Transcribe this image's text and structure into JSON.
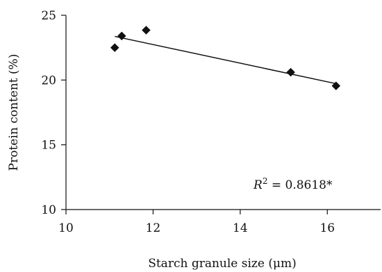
{
  "chart_data": {
    "type": "scatter",
    "xlabel": "Starch granule size (μm)",
    "ylabel": "Protein content (%)",
    "xlim": [
      10,
      17
    ],
    "ylim": [
      10,
      25
    ],
    "x_ticks": [
      10,
      12,
      14,
      16
    ],
    "y_ticks": [
      10,
      15,
      20,
      25
    ],
    "grid": false,
    "legend": "none",
    "series": [
      {
        "marker": "diamond",
        "color": "#111111",
        "points": [
          {
            "x": 11.12,
            "y": 22.5
          },
          {
            "x": 11.28,
            "y": 23.4
          },
          {
            "x": 11.84,
            "y": 23.85
          },
          {
            "x": 15.16,
            "y": 20.6
          },
          {
            "x": 16.2,
            "y": 19.55
          }
        ]
      }
    ],
    "trendline": {
      "type": "linear",
      "from": {
        "x": 11.12,
        "y": 23.37
      },
      "to": {
        "x": 16.2,
        "y": 19.72
      }
    },
    "annotation": {
      "r_symbol": "R",
      "superscript": "2",
      "text": " = 0.8618*",
      "position": "bottom-right"
    }
  }
}
